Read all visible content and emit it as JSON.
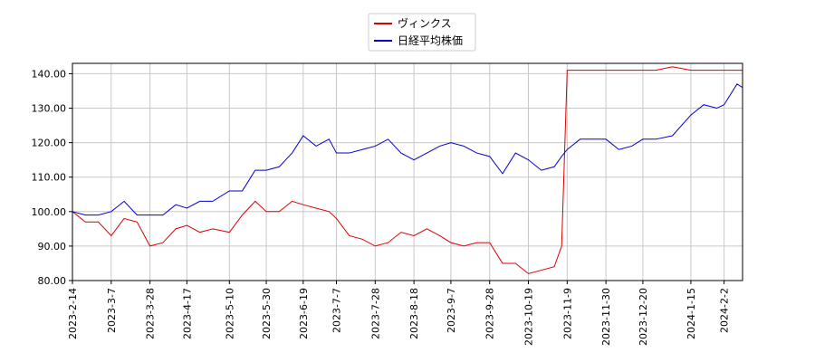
{
  "chart_data": {
    "type": "line",
    "x": [
      "2023-2-14",
      "2023-2-21",
      "2023-2-28",
      "2023-3-7",
      "2023-3-14",
      "2023-3-21",
      "2023-3-28",
      "2023-4-4",
      "2023-4-11",
      "2023-4-17",
      "2023-4-24",
      "2023-5-1",
      "2023-5-10",
      "2023-5-17",
      "2023-5-24",
      "2023-5-30",
      "2023-6-6",
      "2023-6-13",
      "2023-6-19",
      "2023-6-26",
      "2023-7-3",
      "2023-7-7",
      "2023-7-14",
      "2023-7-21",
      "2023-7-28",
      "2023-8-4",
      "2023-8-11",
      "2023-8-18",
      "2023-8-25",
      "2023-9-1",
      "2023-9-7",
      "2023-9-14",
      "2023-9-21",
      "2023-9-28",
      "2023-10-5",
      "2023-10-12",
      "2023-10-19",
      "2023-10-26",
      "2023-11-2",
      "2023-11-6",
      "2023-11-9",
      "2023-11-16",
      "2023-11-23",
      "2023-11-30",
      "2023-12-7",
      "2023-12-14",
      "2023-12-20",
      "2023-12-27",
      "2024-1-5",
      "2024-1-15",
      "2024-1-22",
      "2024-1-29",
      "2024-2-2",
      "2024-2-9",
      "2024-2-12"
    ],
    "series": [
      {
        "name": "ヴィンクス",
        "color": "#dd0000",
        "values": [
          100,
          97,
          97,
          93,
          98,
          97,
          90,
          91,
          95,
          96,
          94,
          95,
          94,
          99,
          103,
          100,
          100,
          103,
          102,
          101,
          100,
          98,
          93,
          92,
          90,
          91,
          94,
          93,
          95,
          93,
          91,
          90,
          91,
          91,
          85,
          85,
          82,
          83,
          84,
          90,
          141,
          141,
          141,
          141,
          141,
          141,
          141,
          141,
          142,
          141,
          141,
          141,
          141,
          141,
          141
        ]
      },
      {
        "name": "日経平均株価",
        "color": "#0000cc",
        "values": [
          100,
          99,
          99,
          100,
          103,
          99,
          99,
          99,
          102,
          101,
          103,
          103,
          106,
          106,
          112,
          112,
          113,
          117,
          122,
          119,
          121,
          117,
          117,
          118,
          119,
          121,
          117,
          115,
          117,
          119,
          120,
          119,
          117,
          116,
          111,
          117,
          115,
          112,
          113,
          116,
          118,
          121,
          121,
          121,
          118,
          119,
          121,
          121,
          122,
          128,
          131,
          130,
          131,
          137,
          136
        ]
      }
    ],
    "xlim": [
      "2023-2-14",
      "2024-2-12"
    ],
    "xticks": [
      "2023-2-14",
      "2023-3-7",
      "2023-3-28",
      "2023-4-17",
      "2023-5-10",
      "2023-5-30",
      "2023-6-19",
      "2023-7-7",
      "2023-7-28",
      "2023-8-18",
      "2023-9-7",
      "2023-9-28",
      "2023-10-19",
      "2023-11-9",
      "2023-11-30",
      "2023-12-20",
      "2024-1-15",
      "2024-2-2"
    ],
    "ylim": [
      80,
      143
    ],
    "yticks": [
      {
        "value": 80,
        "label": "80.00"
      },
      {
        "value": 90,
        "label": "90.00"
      },
      {
        "value": 100,
        "label": "100.00"
      },
      {
        "value": 110,
        "label": "110.00"
      },
      {
        "value": 120,
        "label": "120.00"
      },
      {
        "value": 130,
        "label": "130.00"
      },
      {
        "value": 140,
        "label": "140.00"
      }
    ],
    "grid": true,
    "legend": "top"
  }
}
